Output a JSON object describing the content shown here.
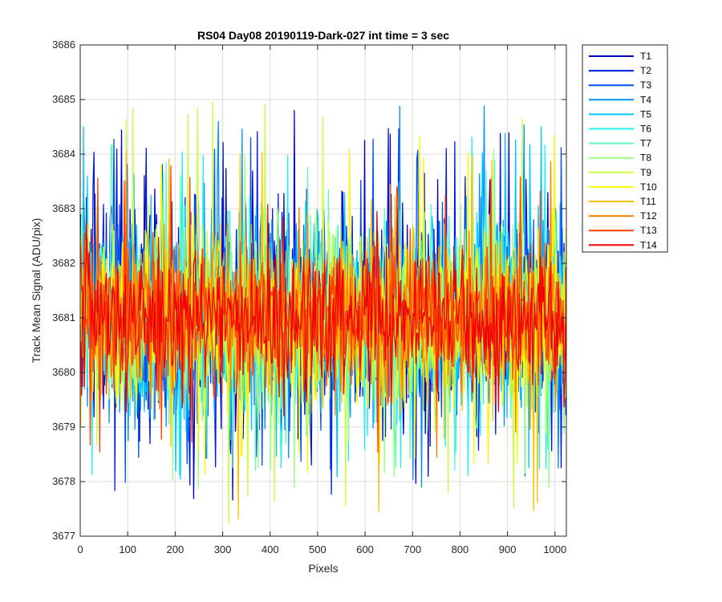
{
  "chart_data": {
    "type": "line",
    "title": "RS04 Day08 20190119-Dark-027 int time = 3 sec",
    "xlabel": "Pixels",
    "ylabel": "Track Mean Signal (ADU/pix)",
    "xlim": [
      0,
      1024
    ],
    "ylim": [
      3677,
      3686
    ],
    "xticks": [
      0,
      100,
      200,
      300,
      400,
      500,
      600,
      700,
      800,
      900,
      1000
    ],
    "yticks": [
      3677,
      3678,
      3679,
      3680,
      3681,
      3682,
      3683,
      3684,
      3685,
      3686
    ],
    "grid": true,
    "legend_position": "outside-top-right",
    "x_range": [
      1,
      1024
    ],
    "series": [
      {
        "name": "T1",
        "color": "#0000c4",
        "approx_mean": 3681.0,
        "approx_min": 3677.6,
        "approx_max": 3684.8
      },
      {
        "name": "T2",
        "color": "#0018e0",
        "approx_mean": 3681.0,
        "approx_min": 3677.7,
        "approx_max": 3684.5
      },
      {
        "name": "T3",
        "color": "#0050f0",
        "approx_mean": 3681.0,
        "approx_min": 3677.8,
        "approx_max": 3684.3
      },
      {
        "name": "T4",
        "color": "#0090ff",
        "approx_mean": 3681.0,
        "approx_min": 3677.9,
        "approx_max": 3685.0
      },
      {
        "name": "T5",
        "color": "#00c8ff",
        "approx_mean": 3681.0,
        "approx_min": 3678.0,
        "approx_max": 3684.5
      },
      {
        "name": "T6",
        "color": "#20f0f0",
        "approx_mean": 3681.0,
        "approx_min": 3678.1,
        "approx_max": 3684.4
      },
      {
        "name": "T7",
        "color": "#60f8c0",
        "approx_mean": 3681.0,
        "approx_min": 3678.2,
        "approx_max": 3684.2
      },
      {
        "name": "T8",
        "color": "#98ff80",
        "approx_mean": 3681.0,
        "approx_min": 3677.7,
        "approx_max": 3684.3
      },
      {
        "name": "T9",
        "color": "#c8ff40",
        "approx_mean": 3681.0,
        "approx_min": 3677.2,
        "approx_max": 3685.2
      },
      {
        "name": "T10",
        "color": "#f8f800",
        "approx_mean": 3681.0,
        "approx_min": 3678.0,
        "approx_max": 3684.4
      },
      {
        "name": "T11",
        "color": "#ffc000",
        "approx_mean": 3681.0,
        "approx_min": 3677.1,
        "approx_max": 3684.2
      },
      {
        "name": "T12",
        "color": "#ff8000",
        "approx_mean": 3681.0,
        "approx_min": 3677.5,
        "approx_max": 3684.0
      },
      {
        "name": "T13",
        "color": "#ff4000",
        "approx_mean": 3681.0,
        "approx_min": 3678.3,
        "approx_max": 3683.8
      },
      {
        "name": "T14",
        "color": "#f00000",
        "approx_mean": 3681.0,
        "approx_min": 3679.2,
        "approx_max": 3683.3
      }
    ]
  }
}
